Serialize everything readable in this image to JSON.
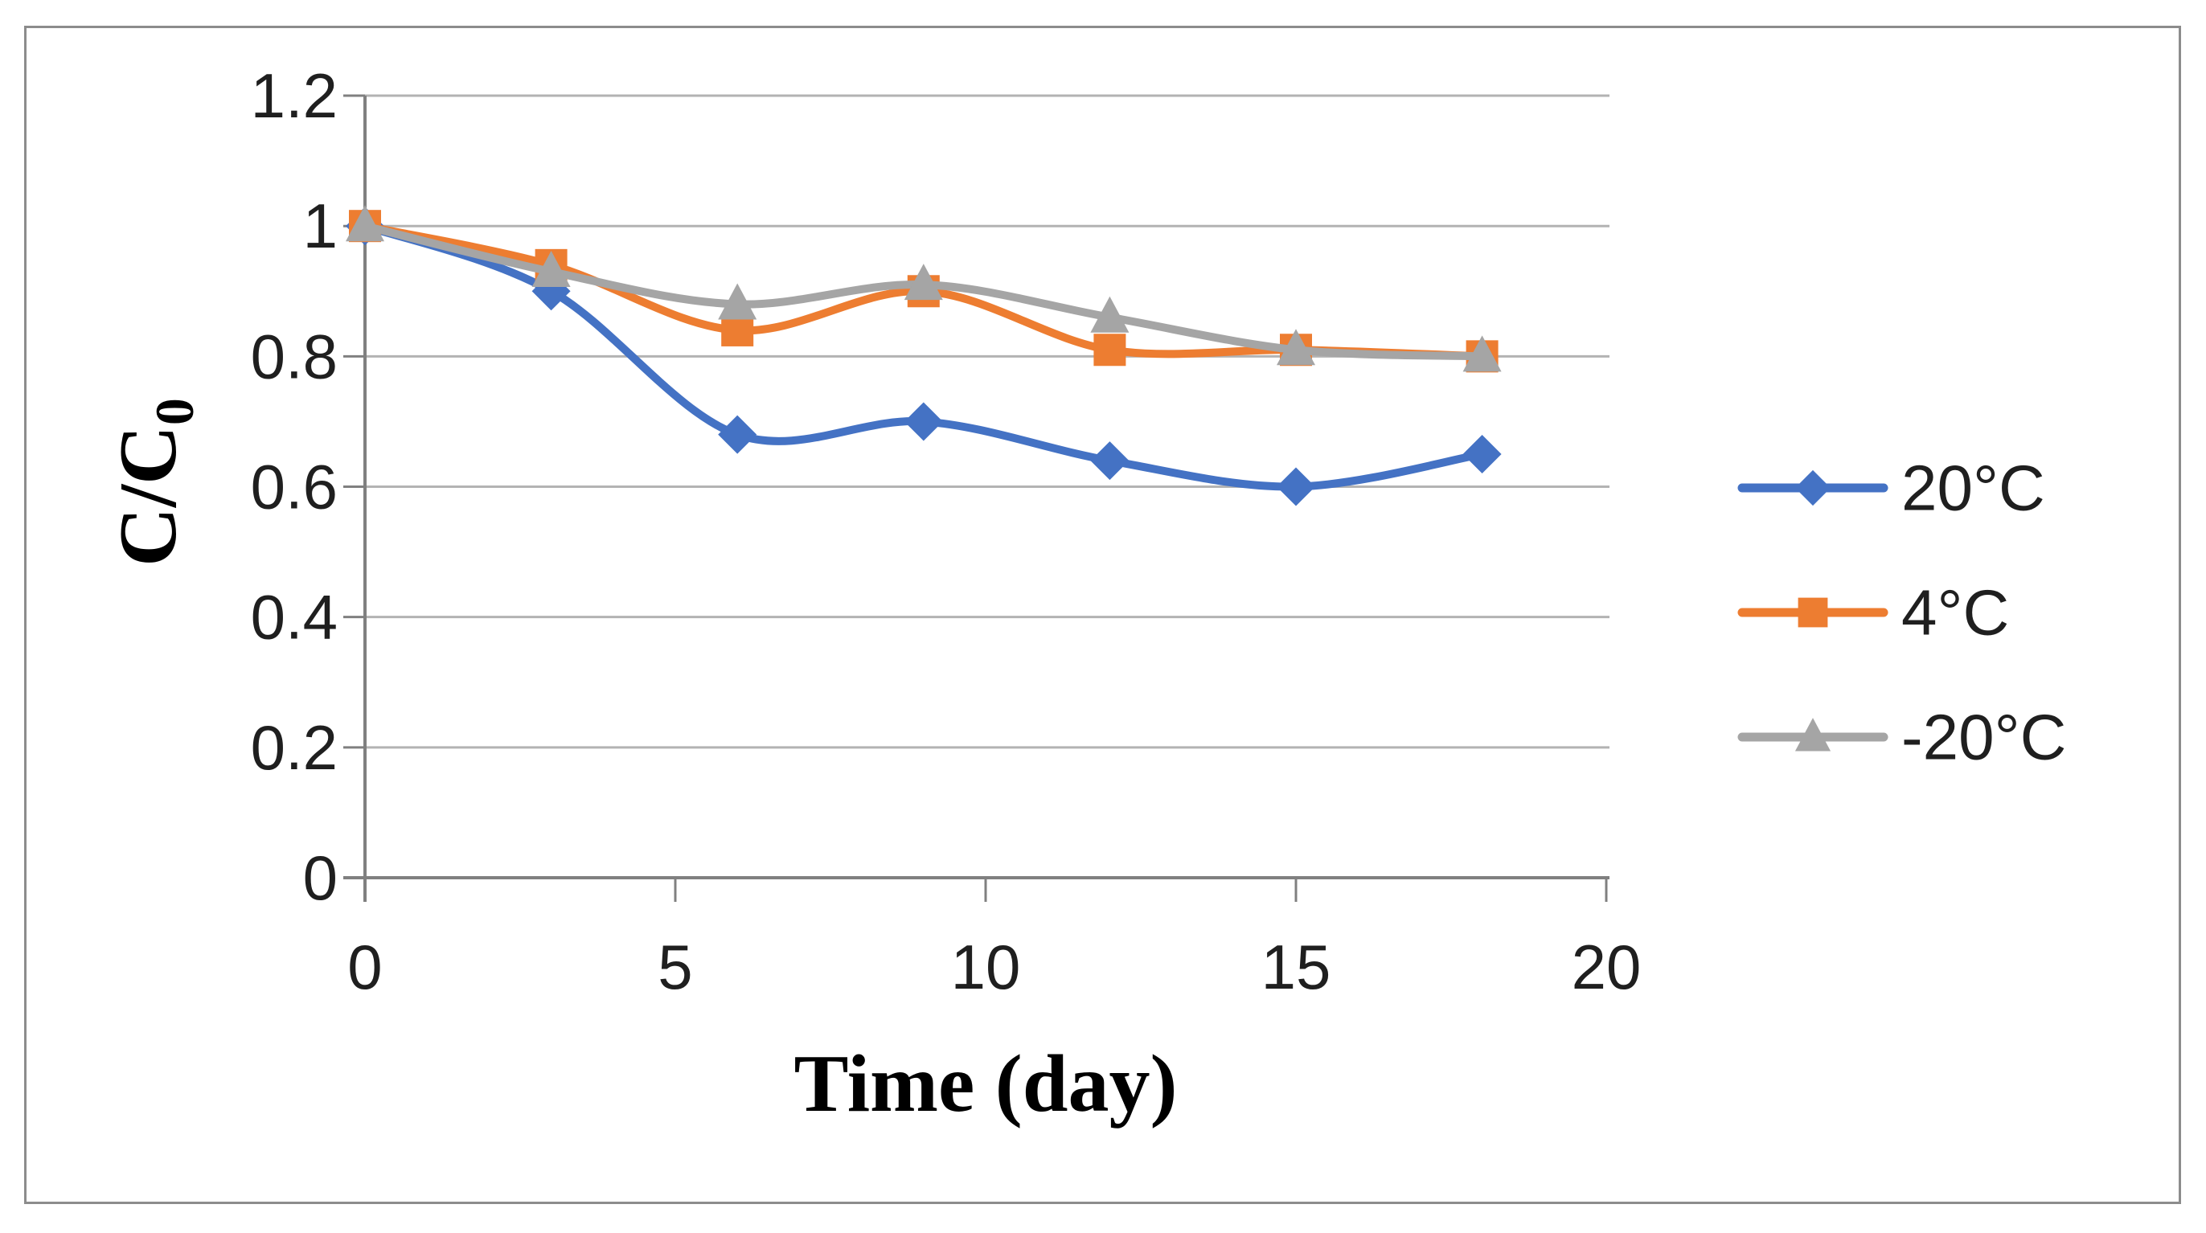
{
  "figure": {
    "background_color": "#ffffff",
    "border_color": "#8c8c8c"
  },
  "chart_data": {
    "type": "line",
    "x": [
      0,
      3,
      6,
      9,
      12,
      15,
      18
    ],
    "series": [
      {
        "name": "20°C",
        "color": "#4472C4",
        "marker": "diamond",
        "values": [
          1.0,
          0.9,
          0.68,
          0.7,
          0.64,
          0.6,
          0.65
        ]
      },
      {
        "name": "4°C",
        "color": "#ED7D31",
        "marker": "square",
        "values": [
          1.0,
          0.94,
          0.84,
          0.9,
          0.81,
          0.81,
          0.8
        ]
      },
      {
        "name": "-20°C",
        "color": "#A5A5A5",
        "marker": "triangle",
        "values": [
          1.0,
          0.93,
          0.88,
          0.91,
          0.86,
          0.81,
          0.8
        ]
      }
    ],
    "title": "",
    "xlabel": "Time (day)",
    "ylabel": "C/C",
    "ylabel_subscript": "0",
    "x_tick_labels": [
      "0",
      "5",
      "10",
      "15",
      "20"
    ],
    "x_tick_values": [
      0,
      5,
      10,
      15,
      20
    ],
    "y_tick_labels": [
      "0",
      "0.2",
      "0.4",
      "0.6",
      "0.8",
      "1",
      "1.2"
    ],
    "y_tick_values": [
      0,
      0.2,
      0.4,
      0.6,
      0.8,
      1.0,
      1.2
    ],
    "xlim": [
      0,
      20
    ],
    "ylim": [
      0,
      1.2
    ],
    "grid": "horizontal",
    "smoothed_lines": true,
    "legend_position": "right",
    "legend_entries": [
      "20°C",
      "4°C",
      "-20°C"
    ],
    "style": {
      "axis_color": "#808080",
      "grid_color": "#b3b3b3",
      "tick_label_color": "#1f1f1f",
      "axis_title_color": "#000000",
      "legend_text_color": "#1f1f1f"
    }
  }
}
